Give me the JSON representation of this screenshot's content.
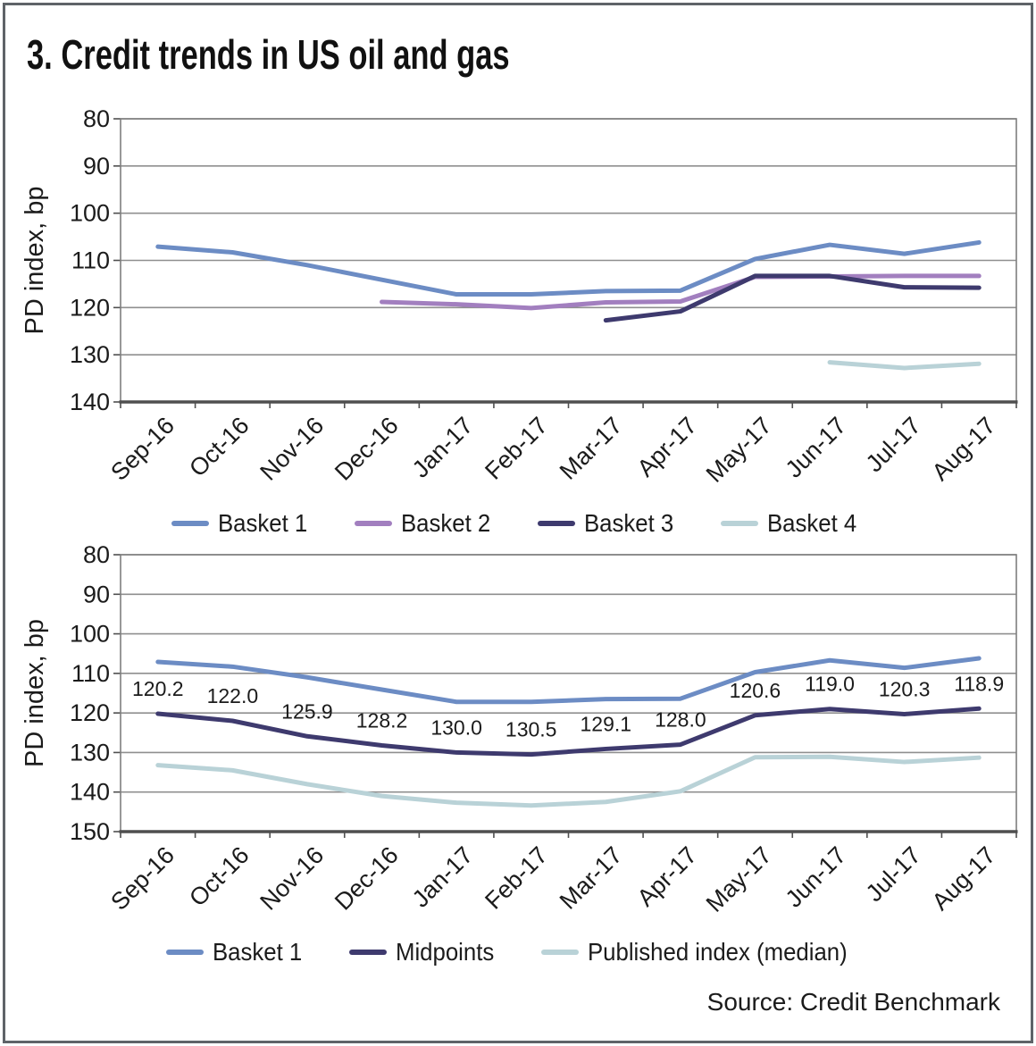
{
  "title": "3. Credit trends in US oil and gas",
  "source": "Source: Credit Benchmark",
  "colors": {
    "basket1": "#6c8cc4",
    "basket2": "#a27fbf",
    "basket3": "#3e3a6e",
    "basket4": "#b9d2d7",
    "grid": "#8f8f8f",
    "plot_border": "#7f7f7f",
    "axis": "#4f4f4f",
    "text": "#1b1b1b"
  },
  "months": [
    "Sep-16",
    "Oct-16",
    "Nov-16",
    "Dec-16",
    "Jan-17",
    "Feb-17",
    "Mar-17",
    "Apr-17",
    "May-17",
    "Jun-17",
    "Jul-17",
    "Aug-17"
  ],
  "chart_data": [
    {
      "type": "line",
      "title": "",
      "ylabel": "PD index, bp",
      "xlabel": "",
      "categories": [
        "Sep-16",
        "Oct-16",
        "Nov-16",
        "Dec-16",
        "Jan-17",
        "Feb-17",
        "Mar-17",
        "Apr-17",
        "May-17",
        "Jun-17",
        "Jul-17",
        "Aug-17"
      ],
      "ylim": [
        80,
        140
      ],
      "yticks": [
        80,
        90,
        100,
        110,
        120,
        130,
        140
      ],
      "y_axis_reversed": true,
      "grid": true,
      "legend_position": "bottom",
      "series": [
        {
          "name": "Basket 1",
          "color_key": "basket1",
          "values": [
            107.1,
            108.3,
            111.0,
            114.1,
            117.2,
            117.2,
            116.5,
            116.4,
            109.7,
            106.7,
            108.6,
            106.2
          ]
        },
        {
          "name": "Basket 2",
          "color_key": "basket2",
          "values": [
            null,
            null,
            null,
            118.8,
            119.3,
            120.1,
            118.9,
            118.7,
            113.5,
            113.4,
            113.3,
            113.3
          ]
        },
        {
          "name": "Basket 3",
          "color_key": "basket3",
          "values": [
            null,
            null,
            null,
            null,
            null,
            null,
            122.7,
            120.8,
            113.3,
            113.3,
            115.7,
            115.8
          ]
        },
        {
          "name": "Basket 4",
          "color_key": "basket4",
          "values": [
            null,
            null,
            null,
            null,
            null,
            null,
            null,
            null,
            null,
            131.6,
            132.8,
            131.9
          ]
        }
      ]
    },
    {
      "type": "line",
      "title": "",
      "ylabel": "PD index, bp",
      "xlabel": "",
      "categories": [
        "Sep-16",
        "Oct-16",
        "Nov-16",
        "Dec-16",
        "Jan-17",
        "Feb-17",
        "Mar-17",
        "Apr-17",
        "May-17",
        "Jun-17",
        "Jul-17",
        "Aug-17"
      ],
      "ylim": [
        80,
        150
      ],
      "yticks": [
        80,
        90,
        100,
        110,
        120,
        130,
        140,
        150
      ],
      "y_axis_reversed": true,
      "grid": true,
      "legend_position": "bottom",
      "series": [
        {
          "name": "Basket 1",
          "color_key": "basket1",
          "values": [
            107.1,
            108.3,
            111.0,
            114.1,
            117.2,
            117.2,
            116.5,
            116.4,
            109.7,
            106.7,
            108.6,
            106.2
          ]
        },
        {
          "name": "Midpoints",
          "color_key": "basket3",
          "values": [
            120.2,
            122.0,
            125.9,
            128.2,
            130.0,
            130.5,
            129.1,
            128.0,
            120.6,
            119.0,
            120.3,
            118.9
          ],
          "data_labels": [
            "120.2",
            "122.0",
            "125.9",
            "128.2",
            "130.0",
            "130.5",
            "129.1",
            "128.0",
            "120.6",
            "119.0",
            "120.3",
            "118.9"
          ]
        },
        {
          "name": "Published index (median)",
          "color_key": "basket4",
          "values": [
            133.2,
            134.5,
            138.0,
            141.0,
            142.7,
            143.4,
            142.5,
            139.8,
            131.2,
            131.1,
            132.4,
            131.3
          ]
        }
      ]
    }
  ]
}
